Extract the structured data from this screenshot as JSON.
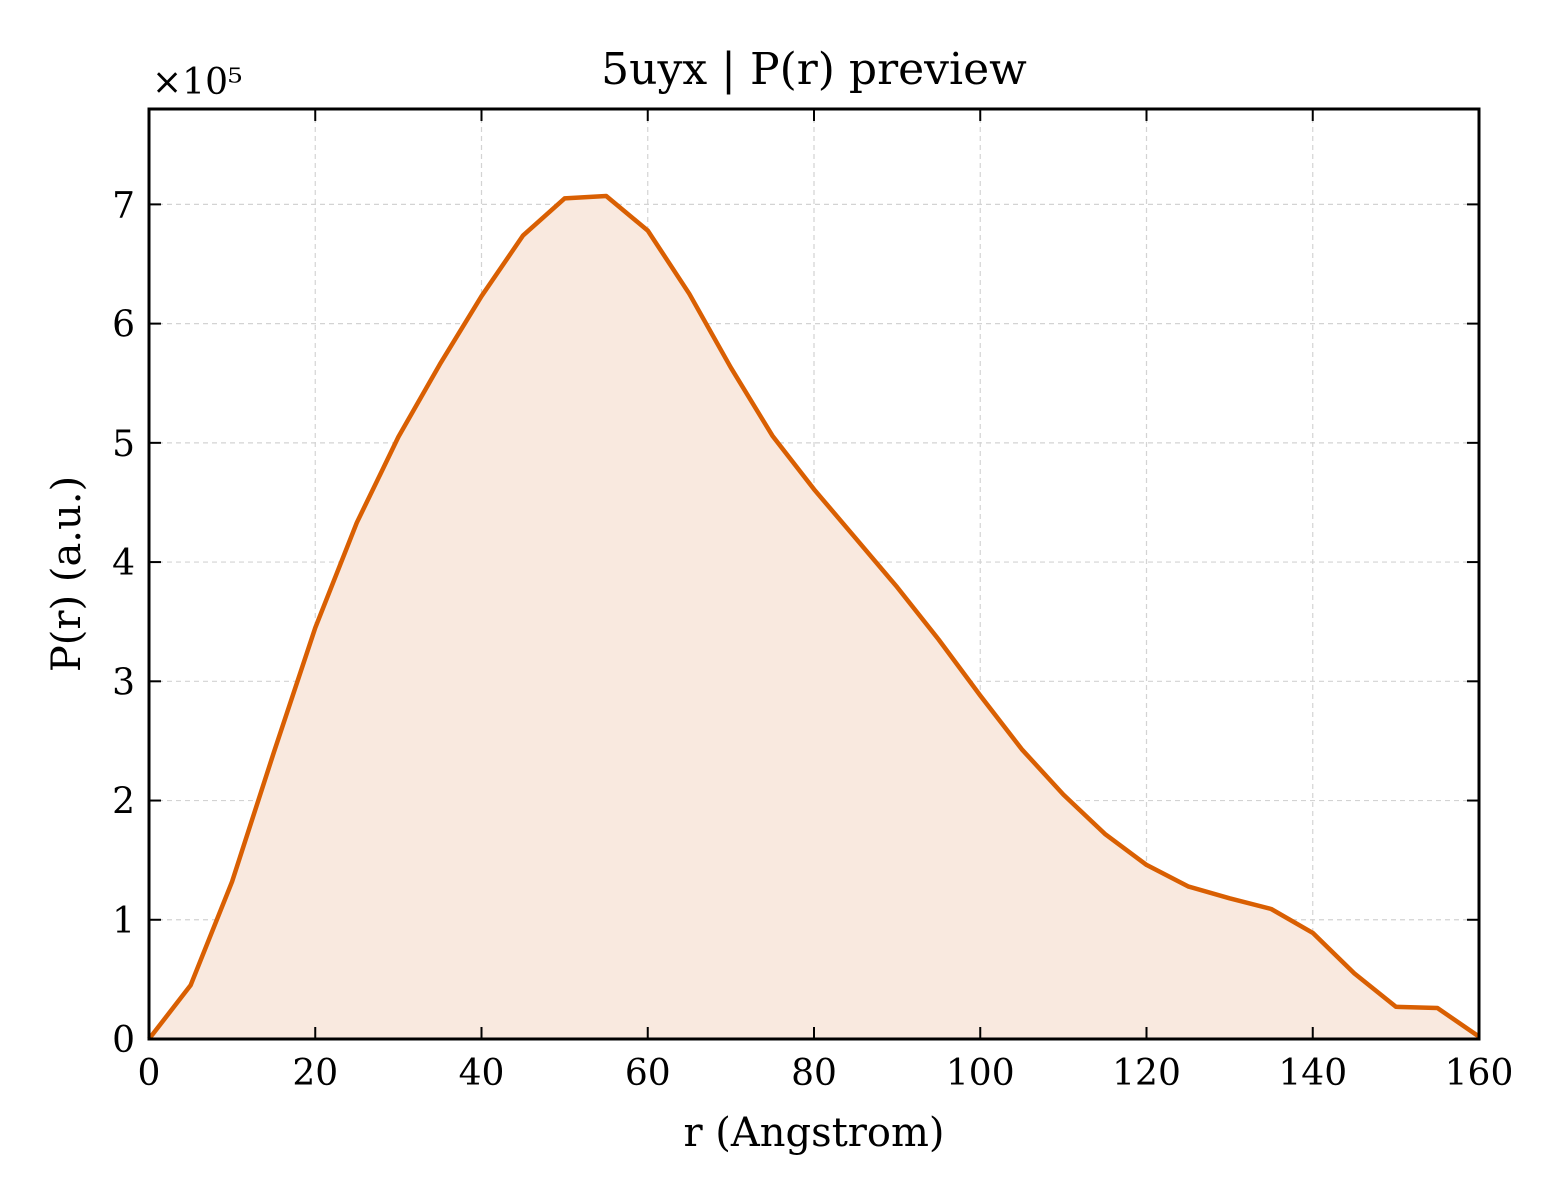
{
  "chart_data": {
    "type": "area",
    "title": "5uyx | P(r) preview",
    "xlabel": "r (Angstrom)",
    "ylabel": "P(r) (a.u.)",
    "y_offset_label": "×10⁵",
    "y_scale_factor": 100000,
    "xlim": [
      0,
      160
    ],
    "ylim": [
      0,
      7.8
    ],
    "x_ticks": [
      0,
      20,
      40,
      60,
      80,
      100,
      120,
      140,
      160
    ],
    "y_ticks": [
      0,
      1,
      2,
      3,
      4,
      5,
      6,
      7
    ],
    "grid": true,
    "line_color": "#d95f02",
    "fill_color": "#f9e9df",
    "series": [
      {
        "x": [
          0,
          5,
          10,
          15,
          20,
          25,
          30,
          35,
          40,
          45,
          50,
          55,
          60,
          65,
          70,
          75,
          80,
          85,
          90,
          95,
          100,
          105,
          110,
          115,
          120,
          125,
          130,
          135,
          140,
          145,
          150,
          155,
          160
        ],
        "y": [
          0.0,
          0.45,
          1.32,
          2.4,
          3.45,
          4.33,
          5.05,
          5.66,
          6.23,
          6.74,
          7.05,
          7.07,
          6.78,
          6.25,
          5.63,
          5.06,
          4.61,
          4.2,
          3.79,
          3.35,
          2.88,
          2.43,
          2.05,
          1.72,
          1.46,
          1.28,
          1.18,
          1.09,
          0.89,
          0.55,
          0.27,
          0.26,
          0.02
        ]
      }
    ]
  }
}
